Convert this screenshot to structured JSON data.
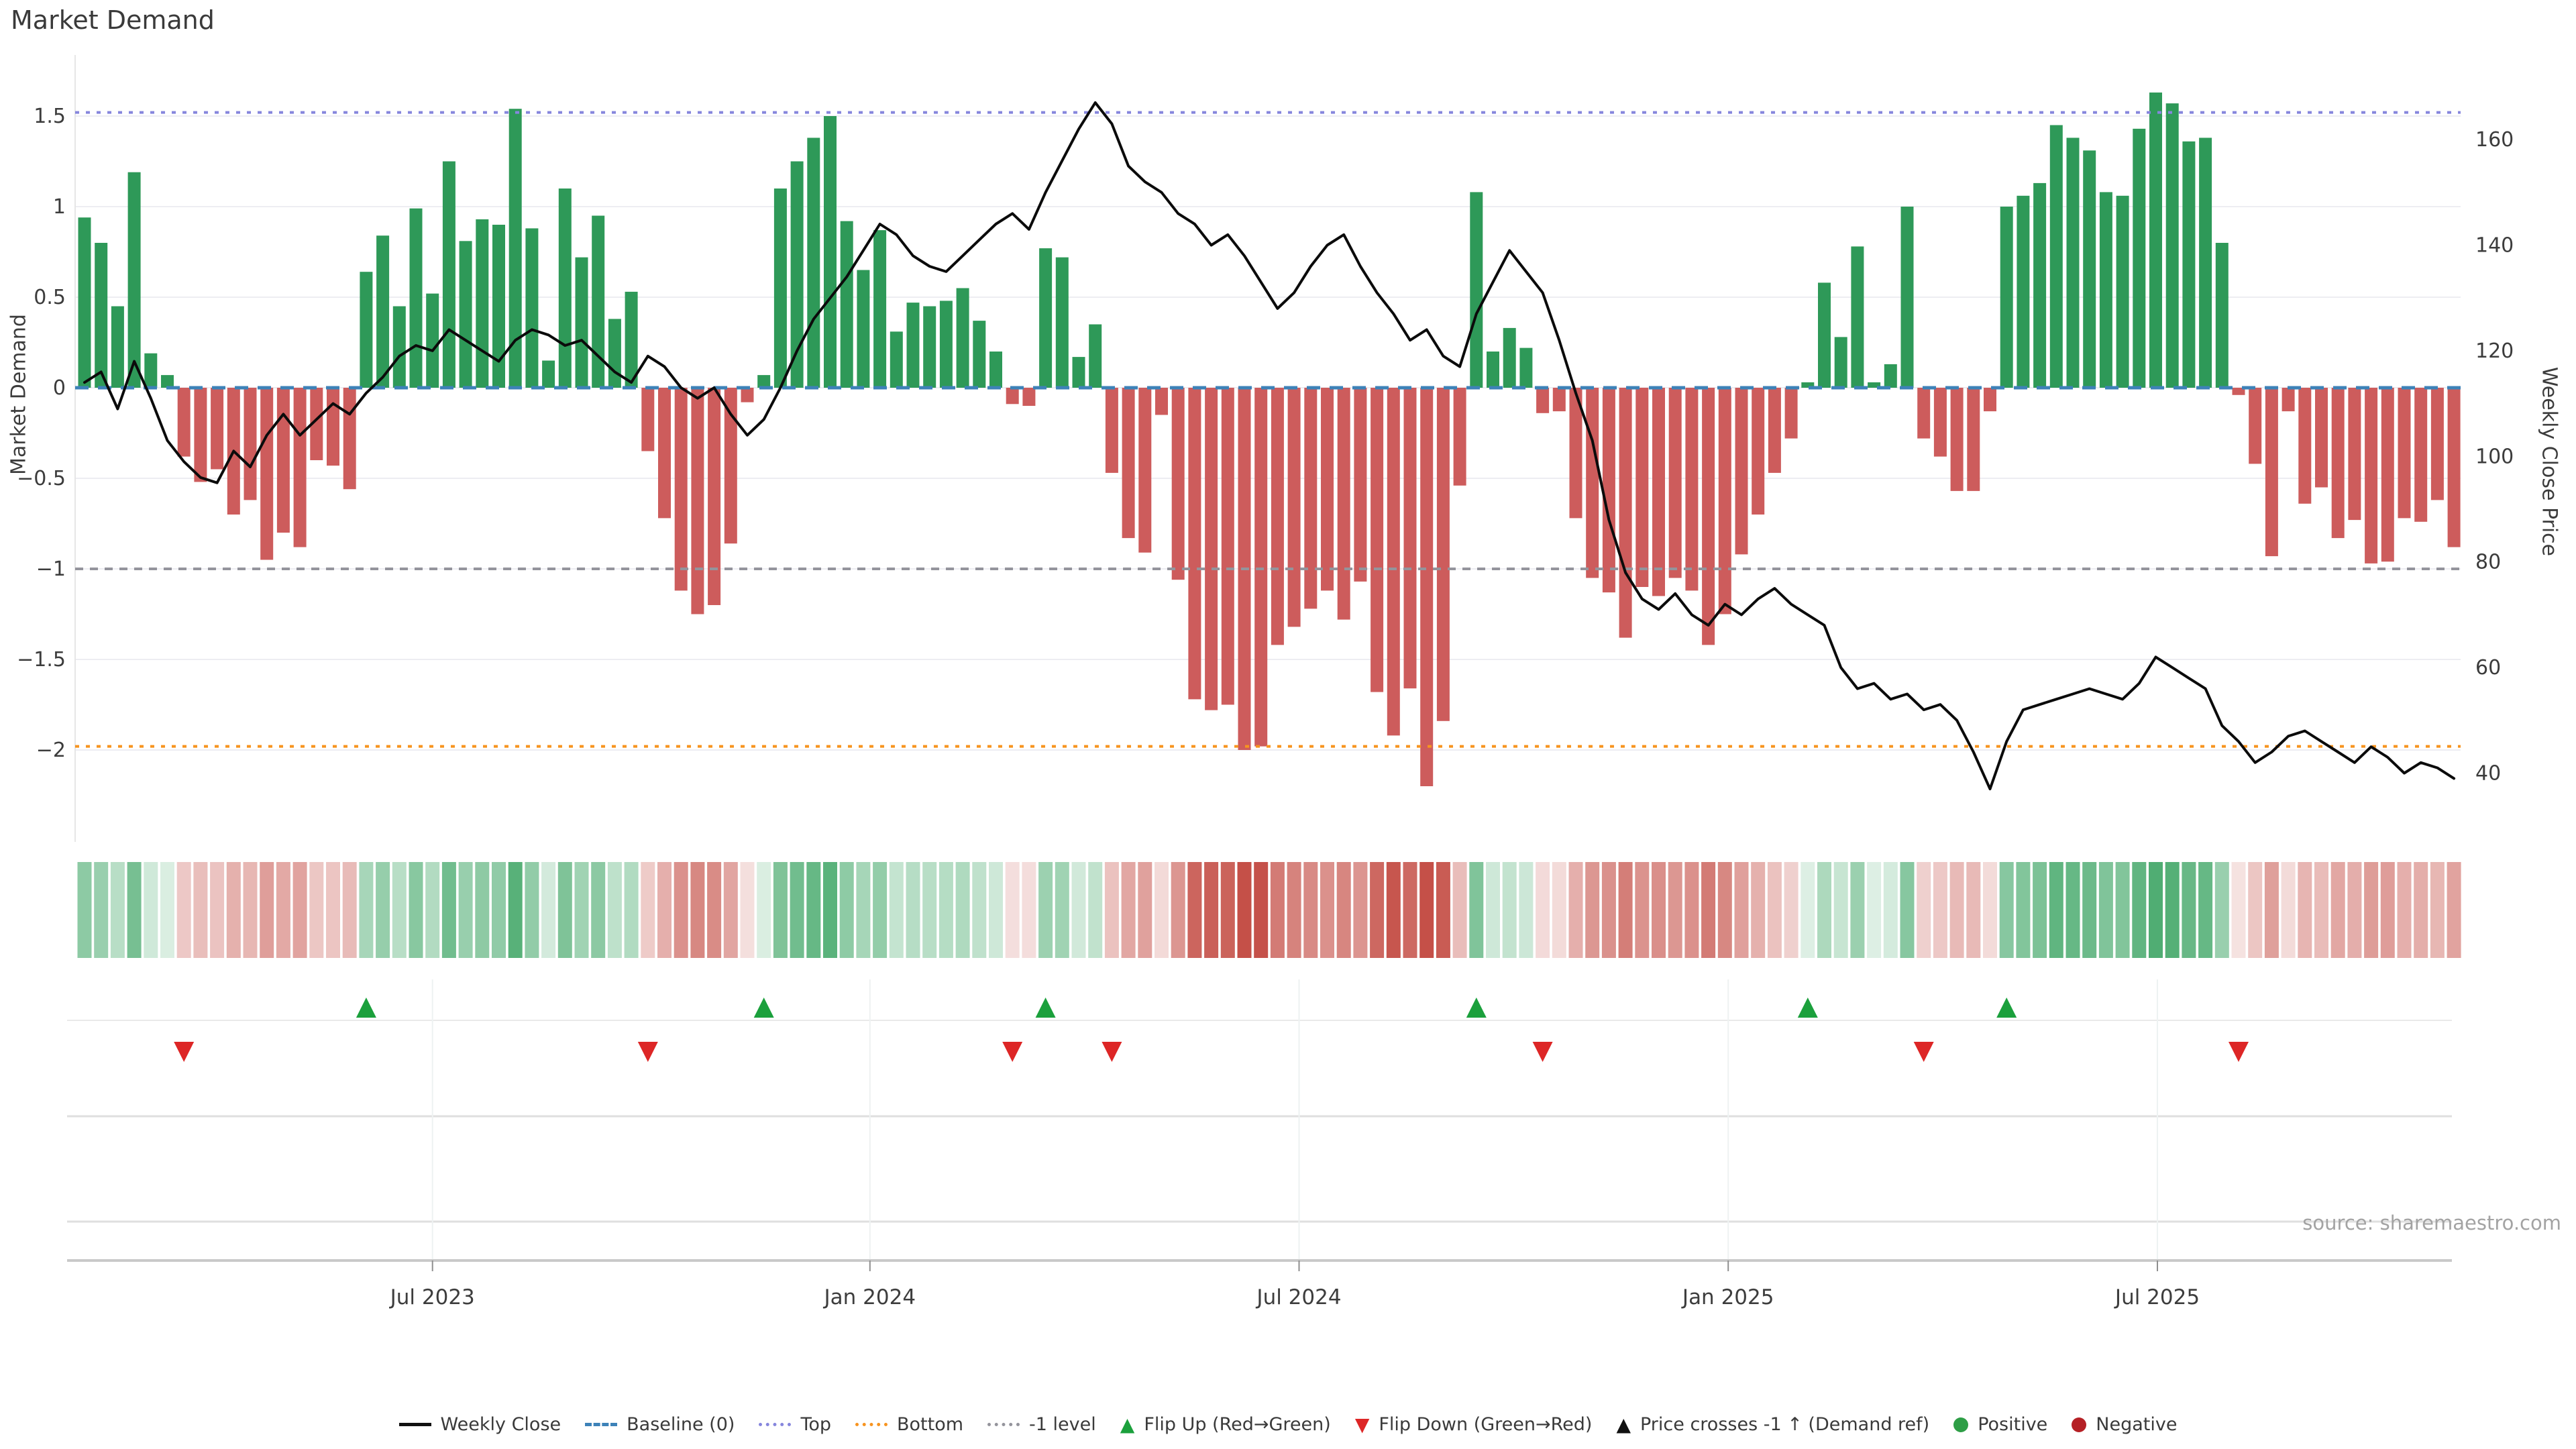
{
  "title": "Market Demand",
  "left_axis": {
    "label": "Market Demand",
    "ticks": [
      1.5,
      1,
      0.5,
      0,
      -0.5,
      -1,
      -1.5,
      -2
    ],
    "tick_labels": [
      "1.5",
      "1",
      "0.5",
      "0",
      "−0.5",
      "−1",
      "−1.5",
      "−2"
    ]
  },
  "right_axis": {
    "label": "Weekly Close Price",
    "ticks": [
      160,
      140,
      120,
      100,
      80,
      60,
      40
    ],
    "tick_labels": [
      "160",
      "140",
      "120",
      "100",
      "80",
      "60",
      "40"
    ]
  },
  "x_axis": {
    "ticks": [
      {
        "week": 21.0,
        "label": "Jul 2023"
      },
      {
        "week": 47.4,
        "label": "Jan 2024"
      },
      {
        "week": 73.3,
        "label": "Jul 2024"
      },
      {
        "week": 99.2,
        "label": "Jan 2025"
      },
      {
        "week": 125.1,
        "label": "Jul 2025"
      }
    ]
  },
  "source": "source: sharemaestro.com",
  "colors": {
    "positive": "#2e9958",
    "negative": "#cd5c5c",
    "price_line": "#0b0b0b",
    "baseline": "#3d82b8",
    "top_line": "#8686dd",
    "bottom_line": "#f7941f",
    "minus1_line": "#94949c",
    "grid": "#ededf2",
    "flip_up": "#1ba03c",
    "flip_down": "#dd2626",
    "price_cross": "#111111",
    "positive_dot": "#2e9e46",
    "negative_dot": "#b52025",
    "heat_pos": "#2f9e59",
    "heat_neg": "#c55048"
  },
  "legend": {
    "items": [
      {
        "marker": "line",
        "color": "#111111",
        "label": "Weekly Close"
      },
      {
        "marker": "dash",
        "color": "#3d82b8",
        "label": "Baseline (0)"
      },
      {
        "marker": "dots",
        "color": "#8686dd",
        "label": "Top"
      },
      {
        "marker": "dots",
        "color": "#f7941f",
        "label": "Bottom"
      },
      {
        "marker": "dots",
        "color": "#94949c",
        "label": "-1 level"
      },
      {
        "marker": "triangle-up",
        "color": "#1ba03c",
        "label": "Flip Up (Red→Green)"
      },
      {
        "marker": "triangle-down",
        "color": "#dd2626",
        "label": "Flip Down (Green→Red)"
      },
      {
        "marker": "triangle-up",
        "color": "#111111",
        "label": "Price crosses -1 ↑ (Demand ref)"
      },
      {
        "marker": "circle",
        "color": "#2e9e46",
        "label": "Positive"
      },
      {
        "marker": "circle",
        "color": "#b52025",
        "label": "Negative"
      }
    ]
  },
  "chart_data": {
    "type": "bar",
    "subtype": "combo-bar-line-heatmap",
    "title": "Market Demand",
    "ylabel_left": "Market Demand",
    "ylabel_right": "Weekly Close Price",
    "weeks": 144,
    "demand_axis_range": [
      -2.51,
      1.84
    ],
    "price_axis_range": [
      27,
      176
    ],
    "grid": true,
    "legend_position": "bottom-center",
    "reference_lines": {
      "baseline": 0,
      "top": 1.52,
      "bottom": -1.98,
      "minus1": -1.0
    },
    "demand": [
      0.94,
      0.8,
      0.45,
      1.19,
      0.19,
      0.07,
      -0.38,
      -0.52,
      -0.45,
      -0.7,
      -0.62,
      -0.95,
      -0.8,
      -0.88,
      -0.4,
      -0.43,
      -0.56,
      0.64,
      0.84,
      0.45,
      0.99,
      0.52,
      1.25,
      0.81,
      0.93,
      0.9,
      1.54,
      0.88,
      0.15,
      1.1,
      0.72,
      0.95,
      0.38,
      0.53,
      -0.35,
      -0.72,
      -1.12,
      -1.25,
      -1.2,
      -0.86,
      -0.08,
      0.07,
      1.1,
      1.25,
      1.38,
      1.5,
      0.92,
      0.65,
      0.87,
      0.31,
      0.47,
      0.45,
      0.48,
      0.55,
      0.37,
      0.2,
      -0.09,
      -0.1,
      0.77,
      0.72,
      0.17,
      0.35,
      -0.47,
      -0.83,
      -0.91,
      -0.15,
      -1.06,
      -1.72,
      -1.78,
      -1.75,
      -2.0,
      -1.98,
      -1.42,
      -1.32,
      -1.22,
      -1.12,
      -1.28,
      -1.07,
      -1.68,
      -1.92,
      -1.66,
      -2.2,
      -1.84,
      -0.54,
      1.08,
      0.2,
      0.33,
      0.22,
      -0.14,
      -0.13,
      -0.72,
      -1.05,
      -1.13,
      -1.38,
      -1.1,
      -1.15,
      -1.05,
      -1.12,
      -1.42,
      -1.25,
      -0.92,
      -0.7,
      -0.47,
      -0.28,
      0.03,
      0.58,
      0.28,
      0.78,
      0.03,
      0.13,
      1.0,
      -0.28,
      -0.38,
      -0.57,
      -0.57,
      -0.13,
      1.0,
      1.06,
      1.13,
      1.45,
      1.38,
      1.31,
      1.08,
      1.06,
      1.43,
      1.63,
      1.57,
      1.36,
      1.38,
      0.8,
      -0.04,
      -0.42,
      -0.93,
      -0.13,
      -0.64,
      -0.55,
      -0.83,
      -0.73,
      -0.97,
      -0.96,
      -0.72,
      -0.74,
      -0.62,
      -0.88
    ],
    "price": [
      114,
      116,
      109,
      118,
      111,
      103,
      99,
      96,
      95,
      101,
      98,
      104,
      108,
      104,
      107,
      110,
      108,
      112,
      115,
      119,
      121,
      120,
      124,
      122,
      120,
      118,
      122,
      124,
      123,
      121,
      122,
      119,
      116,
      114,
      119,
      117,
      113,
      111,
      113,
      108,
      104,
      107,
      113,
      120,
      126,
      130,
      134,
      139,
      144,
      142,
      138,
      136,
      135,
      138,
      141,
      144,
      146,
      143,
      150,
      156,
      162,
      167,
      163,
      155,
      152,
      150,
      146,
      144,
      140,
      142,
      138,
      133,
      128,
      131,
      136,
      140,
      142,
      136,
      131,
      127,
      122,
      124,
      119,
      117,
      127,
      133,
      139,
      135,
      131,
      122,
      112,
      103,
      88,
      78,
      73,
      71,
      74,
      70,
      68,
      72,
      70,
      73,
      75,
      72,
      70,
      68,
      60,
      56,
      57,
      54,
      55,
      52,
      53,
      50,
      44,
      37,
      46,
      52,
      53,
      54,
      55,
      56,
      55,
      54,
      57,
      62,
      60,
      58,
      56,
      49,
      46,
      42,
      44,
      47,
      48,
      46,
      44,
      42,
      45,
      43,
      40,
      42,
      41,
      39
    ],
    "flip_up_weeks": [
      17,
      41,
      58,
      84,
      104,
      116
    ],
    "flip_down_weeks": [
      6,
      34,
      56,
      62,
      88,
      111,
      130
    ],
    "price_cross_weeks": []
  }
}
